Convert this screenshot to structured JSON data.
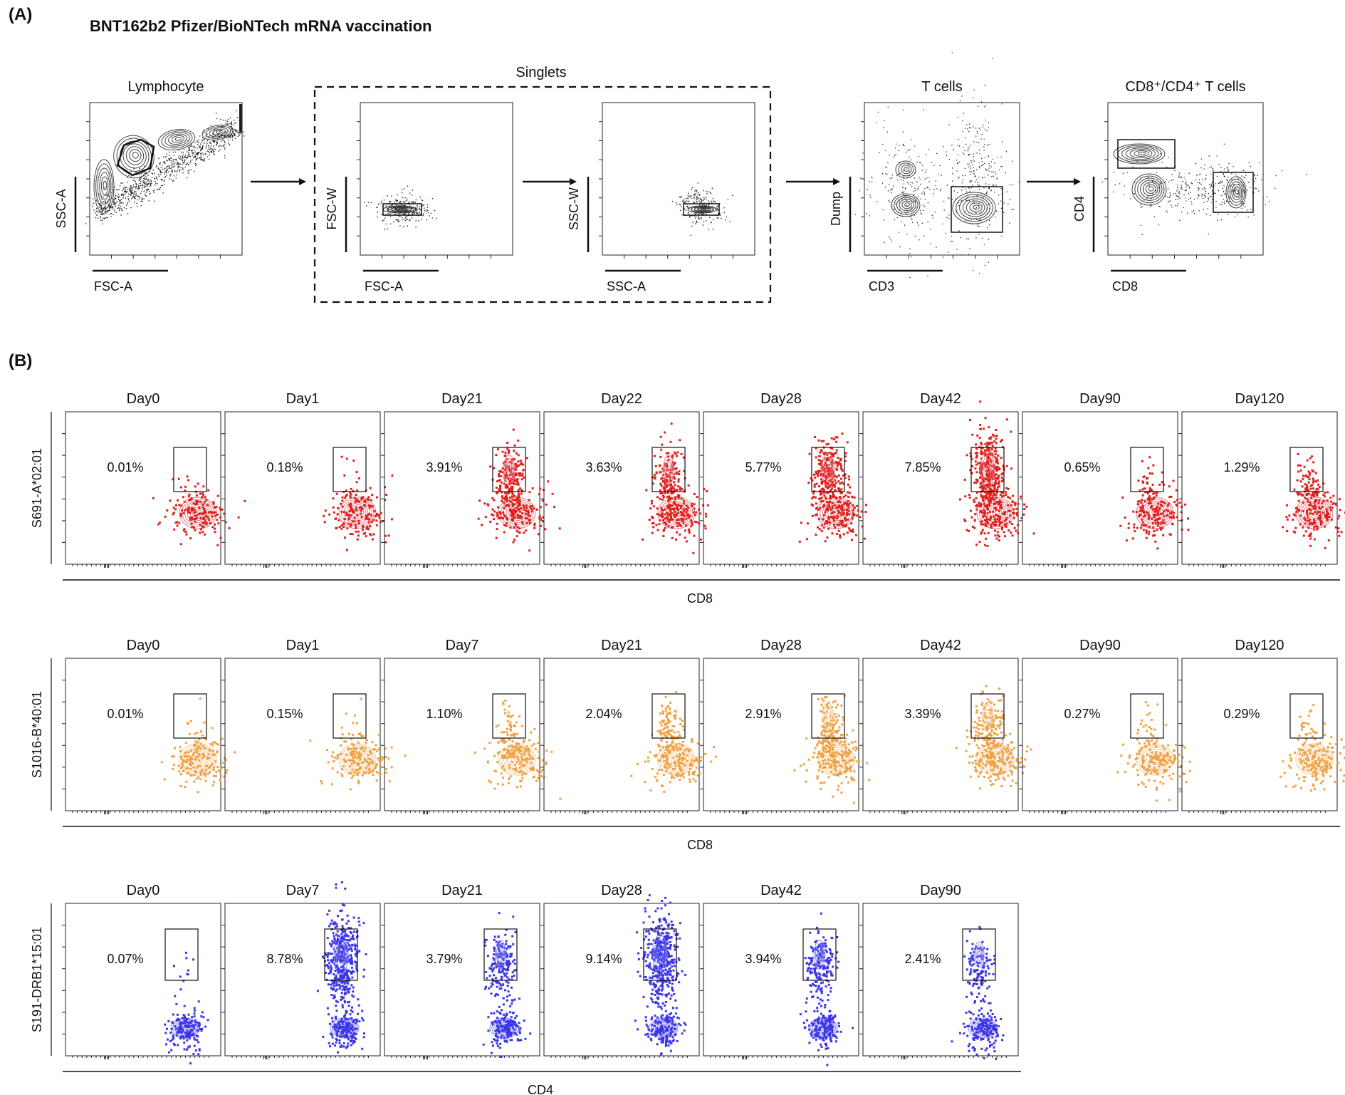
{
  "panel_a": {
    "letter": "(A)",
    "title": "BNT162b2 Pfizer/BioNTech mRNA vaccination",
    "singlets_label": "Singlets",
    "plots": [
      {
        "title": "Lymphocyte",
        "xlabel": "FSC-A",
        "ylabel": "SSC-A"
      },
      {
        "title": "",
        "xlabel": "FSC-A",
        "ylabel": "FSC-W"
      },
      {
        "title": "",
        "xlabel": "SSC-A",
        "ylabel": "SSC-W"
      },
      {
        "title": "T cells",
        "xlabel": "CD3",
        "ylabel": "Dump"
      },
      {
        "title": "CD8⁺/CD4⁺ T cells",
        "xlabel": "CD8",
        "ylabel": "CD4"
      }
    ]
  },
  "panel_b": {
    "letter": "(B)",
    "rows": [
      {
        "label": "S691-A*02:01",
        "xlabel": "CD8",
        "color": "#e0201b",
        "contour_color": "#e07b8a",
        "days": [
          "Day0",
          "Day1",
          "Day21",
          "Day22",
          "Day28",
          "Day42",
          "Day90",
          "Day120"
        ],
        "percents": [
          "0.01%",
          "0.18%",
          "3.91%",
          "3.63%",
          "5.77%",
          "7.85%",
          "0.65%",
          "1.29%"
        ]
      },
      {
        "label": "S1016-B*40:01",
        "xlabel": "CD8",
        "color": "#f0a040",
        "contour_color": "#f3c690",
        "days": [
          "Day0",
          "Day1",
          "Day7",
          "Day21",
          "Day28",
          "Day42",
          "Day90",
          "Day120"
        ],
        "percents": [
          "0.01%",
          "0.15%",
          "1.10%",
          "2.04%",
          "2.91%",
          "3.39%",
          "0.27%",
          "0.29%"
        ]
      },
      {
        "label": "S191-DRB1*15:01",
        "xlabel": "CD4",
        "color": "#3b35e6",
        "contour_color": "#8a86f0",
        "days": [
          "Day0",
          "Day7",
          "Day21",
          "Day28",
          "Day42",
          "Day90"
        ],
        "percents": [
          "0.07%",
          "8.78%",
          "3.79%",
          "9.14%",
          "3.94%",
          "2.41%"
        ]
      }
    ]
  }
}
